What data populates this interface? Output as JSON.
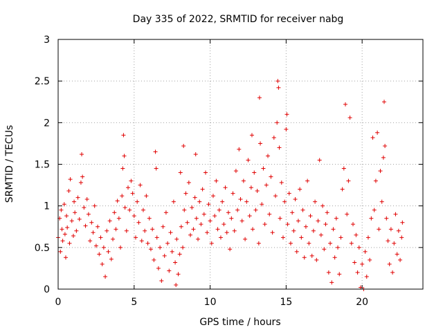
{
  "chart_data": {
    "type": "scatter",
    "title": "Day 335 of 2022, SRMTID for receiver nabg",
    "xlabel": "GPS time / hours",
    "ylabel": "SRMTID / TECUs",
    "xlim": [
      0,
      24
    ],
    "ylim": [
      0,
      3
    ],
    "grid": true,
    "x_ticks": [
      0,
      5,
      10,
      15,
      20
    ],
    "x_tick_labels": [
      "0",
      "5",
      "10",
      "15",
      "20"
    ],
    "y_ticks": [
      0,
      0.5,
      1,
      1.5,
      2,
      2.5,
      3
    ],
    "y_tick_labels": [
      "0",
      "0.5",
      "1",
      "1.5",
      "2",
      "2.5",
      "3"
    ],
    "marker": "+",
    "color": "#e00000",
    "series": [
      {
        "name": "SRMTID",
        "points": [
          [
            0.0,
            0.62
          ],
          [
            0.1,
            0.85
          ],
          [
            0.15,
            0.45
          ],
          [
            0.2,
            0.95
          ],
          [
            0.25,
            0.72
          ],
          [
            0.3,
            0.58
          ],
          [
            0.4,
            1.02
          ],
          [
            0.45,
            0.66
          ],
          [
            0.5,
            0.38
          ],
          [
            0.55,
            0.88
          ],
          [
            0.6,
            0.74
          ],
          [
            0.7,
            1.18
          ],
          [
            0.75,
            0.55
          ],
          [
            0.8,
            1.32
          ],
          [
            0.9,
            0.82
          ],
          [
            1.0,
            0.64
          ],
          [
            1.05,
            1.05
          ],
          [
            1.1,
            0.92
          ],
          [
            1.2,
            0.7
          ],
          [
            1.3,
            1.1
          ],
          [
            1.4,
            0.84
          ],
          [
            1.5,
            1.28
          ],
          [
            1.55,
            1.62
          ],
          [
            1.6,
            1.35
          ],
          [
            1.7,
            0.98
          ],
          [
            1.8,
            0.76
          ],
          [
            1.9,
            1.08
          ],
          [
            2.0,
            0.9
          ],
          [
            2.1,
            0.58
          ],
          [
            2.2,
            0.8
          ],
          [
            2.3,
            0.68
          ],
          [
            2.4,
            1.0
          ],
          [
            2.5,
            0.52
          ],
          [
            2.6,
            0.75
          ],
          [
            2.7,
            0.42
          ],
          [
            2.8,
            0.62
          ],
          [
            2.9,
            0.3
          ],
          [
            3.0,
            0.5
          ],
          [
            3.1,
            0.15
          ],
          [
            3.2,
            0.7
          ],
          [
            3.3,
            0.45
          ],
          [
            3.4,
            0.82
          ],
          [
            3.5,
            0.36
          ],
          [
            3.6,
            0.6
          ],
          [
            3.7,
            0.92
          ],
          [
            3.8,
            0.72
          ],
          [
            3.9,
            1.06
          ],
          [
            4.0,
            0.85
          ],
          [
            4.1,
            0.5
          ],
          [
            4.2,
            1.12
          ],
          [
            4.25,
            1.45
          ],
          [
            4.3,
            1.85
          ],
          [
            4.35,
            1.6
          ],
          [
            4.4,
            0.98
          ],
          [
            4.5,
            0.7
          ],
          [
            4.6,
            1.22
          ],
          [
            4.7,
            0.95
          ],
          [
            4.8,
            1.3
          ],
          [
            4.9,
            1.15
          ],
          [
            5.0,
            0.88
          ],
          [
            5.1,
            0.62
          ],
          [
            5.2,
            1.05
          ],
          [
            5.3,
            0.8
          ],
          [
            5.4,
            1.25
          ],
          [
            5.5,
            0.58
          ],
          [
            5.6,
            0.95
          ],
          [
            5.7,
            0.7
          ],
          [
            5.8,
            1.12
          ],
          [
            5.9,
            0.55
          ],
          [
            6.0,
            0.85
          ],
          [
            6.1,
            0.48
          ],
          [
            6.2,
            0.72
          ],
          [
            6.3,
            0.35
          ],
          [
            6.4,
            1.65
          ],
          [
            6.45,
            1.45
          ],
          [
            6.5,
            0.62
          ],
          [
            6.6,
            0.25
          ],
          [
            6.7,
            0.5
          ],
          [
            6.8,
            0.1
          ],
          [
            6.9,
            0.75
          ],
          [
            7.0,
            0.4
          ],
          [
            7.1,
            0.92
          ],
          [
            7.2,
            0.55
          ],
          [
            7.3,
            0.22
          ],
          [
            7.4,
            0.68
          ],
          [
            7.5,
            0.45
          ],
          [
            7.6,
            1.05
          ],
          [
            7.7,
            0.32
          ],
          [
            7.75,
            0.05
          ],
          [
            7.8,
            0.6
          ],
          [
            7.9,
            0.18
          ],
          [
            8.0,
            0.42
          ],
          [
            8.05,
            1.4
          ],
          [
            8.1,
            0.75
          ],
          [
            8.2,
            0.5
          ],
          [
            8.25,
            1.72
          ],
          [
            8.3,
            0.95
          ],
          [
            8.4,
            1.15
          ],
          [
            8.5,
            0.8
          ],
          [
            8.6,
            1.28
          ],
          [
            8.7,
            0.65
          ],
          [
            8.8,
            0.98
          ],
          [
            8.9,
            0.72
          ],
          [
            9.0,
            1.1
          ],
          [
            9.05,
            1.62
          ],
          [
            9.1,
            0.85
          ],
          [
            9.2,
            0.6
          ],
          [
            9.3,
            1.05
          ],
          [
            9.4,
            0.78
          ],
          [
            9.5,
            1.2
          ],
          [
            9.6,
            0.9
          ],
          [
            9.7,
            1.4
          ],
          [
            9.8,
            0.68
          ],
          [
            9.9,
            1.02
          ],
          [
            10.0,
            0.82
          ],
          [
            10.1,
            0.55
          ],
          [
            10.2,
            1.12
          ],
          [
            10.3,
            0.88
          ],
          [
            10.4,
            1.3
          ],
          [
            10.5,
            0.72
          ],
          [
            10.6,
            0.95
          ],
          [
            10.7,
            0.62
          ],
          [
            10.8,
            1.05
          ],
          [
            10.9,
            0.78
          ],
          [
            11.0,
            1.22
          ],
          [
            11.1,
            0.68
          ],
          [
            11.2,
            0.92
          ],
          [
            11.3,
            0.48
          ],
          [
            11.4,
            0.85
          ],
          [
            11.5,
            1.15
          ],
          [
            11.6,
            0.7
          ],
          [
            11.7,
            1.42
          ],
          [
            11.8,
            0.95
          ],
          [
            11.9,
            1.68
          ],
          [
            12.0,
            1.08
          ],
          [
            12.1,
            0.82
          ],
          [
            12.2,
            1.3
          ],
          [
            12.3,
            0.6
          ],
          [
            12.4,
            1.05
          ],
          [
            12.5,
            1.55
          ],
          [
            12.6,
            0.88
          ],
          [
            12.7,
            1.22
          ],
          [
            12.75,
            1.85
          ],
          [
            12.8,
            0.72
          ],
          [
            12.9,
            1.4
          ],
          [
            13.0,
            0.95
          ],
          [
            13.1,
            1.18
          ],
          [
            13.2,
            0.55
          ],
          [
            13.25,
            2.3
          ],
          [
            13.3,
            1.75
          ],
          [
            13.4,
            1.02
          ],
          [
            13.5,
            1.45
          ],
          [
            13.6,
            0.78
          ],
          [
            13.7,
            1.25
          ],
          [
            13.8,
            1.6
          ],
          [
            13.9,
            0.9
          ],
          [
            14.0,
            1.35
          ],
          [
            14.1,
            0.68
          ],
          [
            14.2,
            1.82
          ],
          [
            14.3,
            1.12
          ],
          [
            14.4,
            2.0
          ],
          [
            14.45,
            2.5
          ],
          [
            14.5,
            2.42
          ],
          [
            14.55,
            1.7
          ],
          [
            14.6,
            0.85
          ],
          [
            14.7,
            1.28
          ],
          [
            14.8,
            0.62
          ],
          [
            14.9,
            1.05
          ],
          [
            15.0,
            1.92
          ],
          [
            15.05,
            2.1
          ],
          [
            15.1,
            0.78
          ],
          [
            15.2,
            1.15
          ],
          [
            15.3,
            0.55
          ],
          [
            15.4,
            0.92
          ],
          [
            15.5,
            0.7
          ],
          [
            15.6,
            1.08
          ],
          [
            15.7,
            0.45
          ],
          [
            15.8,
            0.82
          ],
          [
            15.9,
            1.2
          ],
          [
            16.0,
            0.62
          ],
          [
            16.1,
            0.95
          ],
          [
            16.2,
            0.38
          ],
          [
            16.3,
            0.75
          ],
          [
            16.4,
            1.3
          ],
          [
            16.5,
            0.55
          ],
          [
            16.6,
            0.88
          ],
          [
            16.7,
            0.4
          ],
          [
            16.8,
            0.7
          ],
          [
            16.9,
            1.05
          ],
          [
            17.0,
            0.35
          ],
          [
            17.1,
            0.82
          ],
          [
            17.2,
            1.55
          ],
          [
            17.3,
            0.65
          ],
          [
            17.4,
            1.0
          ],
          [
            17.5,
            0.48
          ],
          [
            17.6,
            0.78
          ],
          [
            17.7,
            0.92
          ],
          [
            17.8,
            0.2
          ],
          [
            17.9,
            0.55
          ],
          [
            18.0,
            0.08
          ],
          [
            18.1,
            0.72
          ],
          [
            18.2,
            0.38
          ],
          [
            18.3,
            0.85
          ],
          [
            18.4,
            0.5
          ],
          [
            18.5,
            0.18
          ],
          [
            18.6,
            0.62
          ],
          [
            18.7,
            1.2
          ],
          [
            18.8,
            1.45
          ],
          [
            18.9,
            2.22
          ],
          [
            19.0,
            0.9
          ],
          [
            19.1,
            1.3
          ],
          [
            19.2,
            2.06
          ],
          [
            19.3,
            0.55
          ],
          [
            19.4,
            0.78
          ],
          [
            19.5,
            0.32
          ],
          [
            19.6,
            0.65
          ],
          [
            19.7,
            0.2
          ],
          [
            19.8,
            0.5
          ],
          [
            19.9,
            0.02
          ],
          [
            20.0,
            0.3
          ],
          [
            20.1,
            0.0
          ],
          [
            20.2,
            0.45
          ],
          [
            20.3,
            0.15
          ],
          [
            20.4,
            0.62
          ],
          [
            20.5,
            0.35
          ],
          [
            20.6,
            0.85
          ],
          [
            20.7,
            1.82
          ],
          [
            20.8,
            0.95
          ],
          [
            20.9,
            1.3
          ],
          [
            21.0,
            1.88
          ],
          [
            21.1,
            0.72
          ],
          [
            21.2,
            1.42
          ],
          [
            21.3,
            1.05
          ],
          [
            21.4,
            1.58
          ],
          [
            21.45,
            2.25
          ],
          [
            21.5,
            1.72
          ],
          [
            21.6,
            0.85
          ],
          [
            21.7,
            0.58
          ],
          [
            21.8,
            0.3
          ],
          [
            21.9,
            0.72
          ],
          [
            22.0,
            0.2
          ],
          [
            22.1,
            0.55
          ],
          [
            22.2,
            0.9
          ],
          [
            22.3,
            0.42
          ],
          [
            22.4,
            0.7
          ],
          [
            22.5,
            0.35
          ],
          [
            22.6,
            0.62
          ],
          [
            22.65,
            0.8
          ]
        ]
      }
    ]
  }
}
